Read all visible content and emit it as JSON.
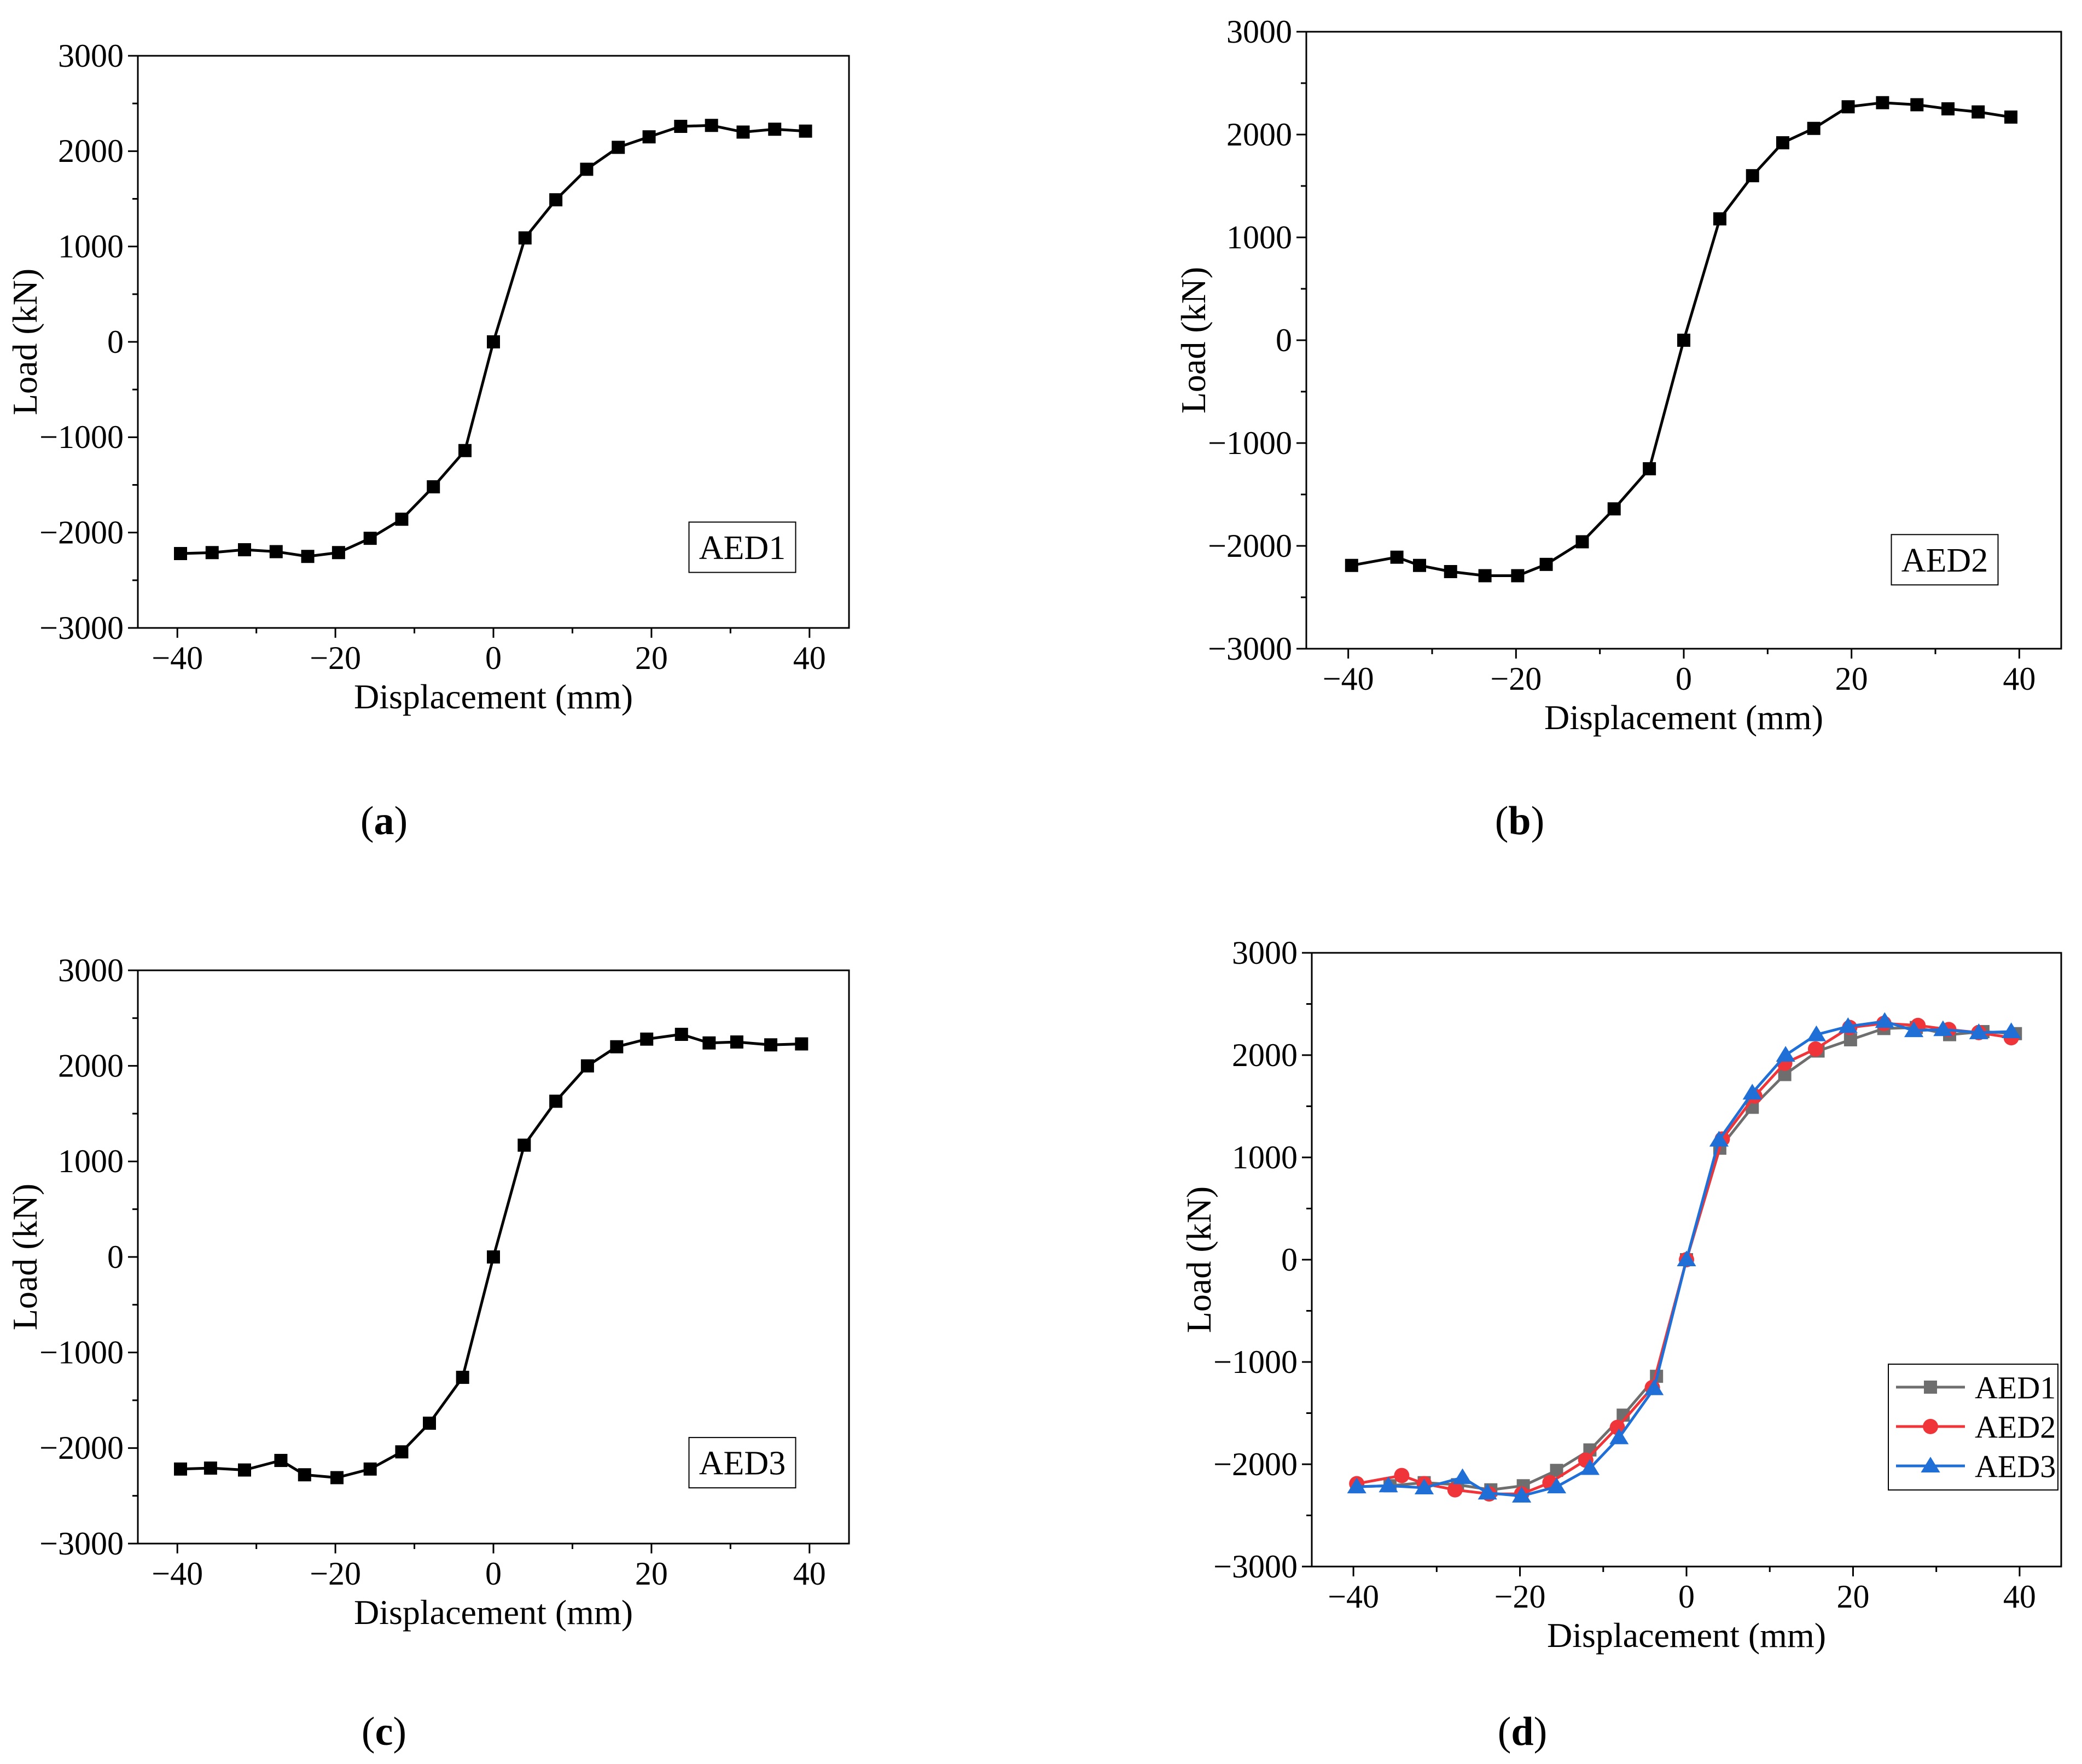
{
  "chart_data": [
    {
      "type": "line",
      "panel_label": "a",
      "title": "",
      "xlabel": "Displacement (mm)",
      "ylabel": "Load (kN)",
      "xlim": [
        -45,
        45
      ],
      "ylim": [
        -3000,
        3000
      ],
      "xticks": [
        "−40",
        "−20",
        "0",
        "20",
        "40"
      ],
      "yticks": [
        "3000",
        "2000",
        "1000",
        "0",
        "−1000",
        "−2000",
        "−3000"
      ],
      "xtick_values": [
        -40,
        -20,
        0,
        20,
        40
      ],
      "ytick_values": [
        3000,
        2000,
        1000,
        0,
        -1000,
        -2000,
        -3000
      ],
      "annotation": "AED1",
      "series": [
        {
          "name": "AED1",
          "color": "#000000",
          "marker": "square",
          "x": [
            -39.6,
            -35.6,
            -31.5,
            -27.5,
            -23.5,
            -19.6,
            -15.6,
            -11.6,
            -7.6,
            -3.6,
            0,
            4,
            7.9,
            11.8,
            15.8,
            19.7,
            23.7,
            27.6,
            31.6,
            35.6,
            39.5
          ],
          "y": [
            -2220,
            -2210,
            -2180,
            -2200,
            -2250,
            -2210,
            -2060,
            -1860,
            -1520,
            -1140,
            0,
            1090,
            1490,
            1810,
            2040,
            2150,
            2260,
            2270,
            2200,
            2230,
            2210
          ]
        }
      ]
    },
    {
      "type": "line",
      "panel_label": "b",
      "title": "",
      "xlabel": "Displacement (mm)",
      "ylabel": "Load (kN)",
      "xlim": [
        -45,
        45
      ],
      "ylim": [
        -3000,
        3000
      ],
      "xticks": [
        "−40",
        "−20",
        "0",
        "20",
        "40"
      ],
      "yticks": [
        "3000",
        "2000",
        "1000",
        "0",
        "−1000",
        "−2000",
        "−3000"
      ],
      "xtick_values": [
        -40,
        -20,
        0,
        20,
        40
      ],
      "ytick_values": [
        3000,
        2000,
        1000,
        0,
        -1000,
        -2000,
        -3000
      ],
      "annotation": "AED2",
      "series": [
        {
          "name": "AED2",
          "color": "#000000",
          "marker": "square",
          "x": [
            -39.6,
            -34.2,
            -31.5,
            -27.8,
            -23.7,
            -19.8,
            -16.4,
            -12.1,
            -8.3,
            -4.1,
            0,
            4.3,
            8.2,
            11.8,
            15.5,
            19.6,
            23.7,
            27.8,
            31.5,
            35.1,
            39
          ],
          "y": [
            -2190,
            -2110,
            -2190,
            -2250,
            -2290,
            -2290,
            -2180,
            -1960,
            -1640,
            -1250,
            0,
            1180,
            1600,
            1920,
            2060,
            2270,
            2310,
            2290,
            2250,
            2220,
            2170
          ]
        }
      ]
    },
    {
      "type": "line",
      "panel_label": "c",
      "title": "",
      "xlabel": "Displacement (mm)",
      "ylabel": "Load (kN)",
      "xlim": [
        -45,
        45
      ],
      "ylim": [
        -3000,
        3000
      ],
      "xticks": [
        "−40",
        "−20",
        "0",
        "20",
        "40"
      ],
      "yticks": [
        "3000",
        "2000",
        "1000",
        "0",
        "−1000",
        "−2000",
        "−3000"
      ],
      "xtick_values": [
        -40,
        -20,
        0,
        20,
        40
      ],
      "ytick_values": [
        3000,
        2000,
        1000,
        0,
        -1000,
        -2000,
        -3000
      ],
      "annotation": "AED3",
      "series": [
        {
          "name": "AED3",
          "color": "#000000",
          "marker": "square",
          "x": [
            -39.6,
            -35.8,
            -31.5,
            -26.9,
            -23.9,
            -19.8,
            -15.6,
            -11.6,
            -8.1,
            -3.9,
            0,
            3.9,
            7.9,
            11.9,
            15.6,
            19.4,
            23.8,
            27.3,
            30.8,
            35.1,
            39
          ],
          "y": [
            -2220,
            -2210,
            -2230,
            -2130,
            -2280,
            -2310,
            -2220,
            -2040,
            -1740,
            -1260,
            0,
            1170,
            1630,
            2000,
            2200,
            2280,
            2330,
            2240,
            2250,
            2220,
            2230
          ]
        }
      ]
    },
    {
      "type": "line",
      "panel_label": "d",
      "title": "",
      "xlabel": "Displacement (mm)",
      "ylabel": "Load (kN)",
      "xlim": [
        -45,
        45
      ],
      "ylim": [
        -3000,
        3000
      ],
      "xticks": [
        "−40",
        "−20",
        "0",
        "20",
        "40"
      ],
      "yticks": [
        "3000",
        "2000",
        "1000",
        "0",
        "−1000",
        "−2000",
        "−3000"
      ],
      "xtick_values": [
        -40,
        -20,
        0,
        20,
        40
      ],
      "ytick_values": [
        3000,
        2000,
        1000,
        0,
        -1000,
        -2000,
        -3000
      ],
      "legend": {
        "placement": "bottom-right",
        "entries": [
          "AED1",
          "AED2",
          "AED3"
        ]
      },
      "series": [
        {
          "name": "AED1",
          "color": "#6e6e6e",
          "marker": "square",
          "x": [
            -39.6,
            -35.6,
            -31.5,
            -27.5,
            -23.5,
            -19.6,
            -15.6,
            -11.6,
            -7.6,
            -3.6,
            0,
            4,
            7.9,
            11.8,
            15.8,
            19.7,
            23.7,
            27.6,
            31.6,
            35.6,
            39.5
          ],
          "y": [
            -2220,
            -2210,
            -2180,
            -2200,
            -2250,
            -2210,
            -2060,
            -1860,
            -1520,
            -1140,
            0,
            1090,
            1490,
            1810,
            2040,
            2150,
            2260,
            2270,
            2200,
            2230,
            2210
          ]
        },
        {
          "name": "AED2",
          "color": "#f0353a",
          "marker": "circle",
          "x": [
            -39.6,
            -34.2,
            -31.5,
            -27.8,
            -23.7,
            -19.8,
            -16.4,
            -12.1,
            -8.3,
            -4.1,
            0,
            4.3,
            8.2,
            11.8,
            15.5,
            19.6,
            23.7,
            27.8,
            31.5,
            35.1,
            39
          ],
          "y": [
            -2190,
            -2110,
            -2190,
            -2250,
            -2290,
            -2290,
            -2180,
            -1960,
            -1640,
            -1250,
            0,
            1180,
            1600,
            1920,
            2060,
            2270,
            2310,
            2290,
            2250,
            2220,
            2170
          ]
        },
        {
          "name": "AED3",
          "color": "#1f6fd6",
          "marker": "triangle",
          "x": [
            -39.6,
            -35.8,
            -31.5,
            -26.9,
            -23.9,
            -19.8,
            -15.6,
            -11.6,
            -8.1,
            -3.9,
            0,
            3.9,
            7.9,
            11.9,
            15.6,
            19.4,
            23.8,
            27.3,
            30.8,
            35.1,
            39
          ],
          "y": [
            -2220,
            -2210,
            -2230,
            -2130,
            -2280,
            -2310,
            -2220,
            -2040,
            -1740,
            -1260,
            0,
            1170,
            1630,
            2000,
            2200,
            2280,
            2330,
            2240,
            2250,
            2220,
            2230
          ]
        }
      ]
    }
  ]
}
